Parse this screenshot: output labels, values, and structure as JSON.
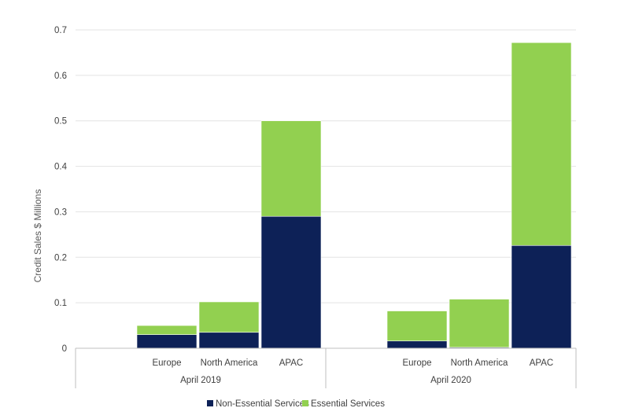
{
  "colors": {
    "non_essential": "#0d2157",
    "essential": "#92d050",
    "grid": "#e3e3e3",
    "axis": "#bfbfbf"
  },
  "chart_data": {
    "type": "bar",
    "stacked": true,
    "title": "",
    "xlabel": "",
    "ylabel": "Credit Sales $ Millions",
    "ylim": [
      0,
      0.7
    ],
    "yticks": [
      "0",
      "0.1",
      "0.2",
      "0.3",
      "0.4",
      "0.5",
      "0.6",
      "0.7"
    ],
    "grid": true,
    "legend_position": "bottom",
    "groups": [
      {
        "label": "April 2019",
        "categories": [
          "Europe",
          "North America",
          "APAC"
        ]
      },
      {
        "label": "April 2020",
        "categories": [
          "Europe",
          "North America",
          "APAC"
        ]
      }
    ],
    "series": [
      {
        "name": "Non-Essential Services",
        "values": [
          0.03,
          0.035,
          0.29,
          0.016,
          0.002,
          0.226
        ]
      },
      {
        "name": "Essential Services",
        "values": [
          0.02,
          0.067,
          0.21,
          0.066,
          0.106,
          0.446
        ]
      }
    ]
  }
}
